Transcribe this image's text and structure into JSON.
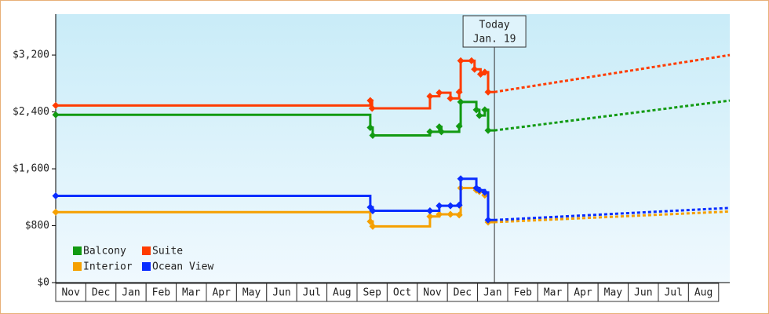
{
  "chart_data": {
    "type": "step-line",
    "xlim": [
      0,
      22.37
    ],
    "ylim": [
      0,
      3775
    ],
    "yticks": [
      {
        "value": 0,
        "label": "$0"
      },
      {
        "value": 800,
        "label": "$800"
      },
      {
        "value": 1600,
        "label": "$1,600"
      },
      {
        "value": 2400,
        "label": "$2,400"
      },
      {
        "value": 3200,
        "label": "$3,200"
      }
    ],
    "xticks": [
      {
        "value": 0.5,
        "label": "Nov"
      },
      {
        "value": 1.5,
        "label": "Dec"
      },
      {
        "value": 2.5,
        "label": "Jan"
      },
      {
        "value": 3.5,
        "label": "Feb"
      },
      {
        "value": 4.5,
        "label": "Mar"
      },
      {
        "value": 5.5,
        "label": "Apr"
      },
      {
        "value": 6.5,
        "label": "May"
      },
      {
        "value": 7.5,
        "label": "Jun"
      },
      {
        "value": 8.5,
        "label": "Jul"
      },
      {
        "value": 9.5,
        "label": "Aug"
      },
      {
        "value": 10.5,
        "label": "Sep"
      },
      {
        "value": 11.5,
        "label": "Oct"
      },
      {
        "value": 12.5,
        "label": "Nov"
      },
      {
        "value": 13.5,
        "label": "Dec"
      },
      {
        "value": 14.5,
        "label": "Jan"
      },
      {
        "value": 15.5,
        "label": "Feb"
      },
      {
        "value": 16.5,
        "label": "Mar"
      },
      {
        "value": 17.5,
        "label": "Apr"
      },
      {
        "value": 18.5,
        "label": "May"
      },
      {
        "value": 19.5,
        "label": "Jun"
      },
      {
        "value": 20.5,
        "label": "Jul"
      },
      {
        "value": 21.5,
        "label": "Aug"
      }
    ],
    "annotation": {
      "x": 14.56,
      "lines": [
        "Today",
        "Jan. 19"
      ]
    },
    "series": [
      {
        "name": "Balcony",
        "color": "#129a12",
        "x": [
          0,
          10.44,
          10.52,
          12.42,
          12.73,
          12.8,
          13.39,
          13.44,
          13.96,
          14.06,
          14.24,
          14.35
        ],
        "values": [
          2360,
          2180,
          2070,
          2120,
          2190,
          2120,
          2200,
          2540,
          2430,
          2350,
          2430,
          2140
        ],
        "projection": {
          "x": [
            14.56,
            22.37
          ],
          "values": [
            2140,
            2560
          ]
        }
      },
      {
        "name": "Suite",
        "color": "#ff3c00",
        "x": [
          0,
          10.44,
          10.5,
          12.42,
          12.73,
          13.1,
          13.39,
          13.44,
          13.8,
          13.9,
          14.1,
          14.24,
          14.35
        ],
        "values": [
          2490,
          2560,
          2450,
          2620,
          2670,
          2590,
          2680,
          3120,
          3120,
          3000,
          2930,
          2960,
          2680
        ],
        "projection": {
          "x": [
            14.56,
            22.37
          ],
          "values": [
            2680,
            3200
          ]
        }
      },
      {
        "name": "Interior",
        "color": "#f5a000",
        "x": [
          0,
          10.44,
          10.52,
          12.42,
          12.73,
          13.1,
          13.39,
          13.44,
          13.96,
          14.06,
          14.24,
          14.35
        ],
        "values": [
          990,
          860,
          790,
          930,
          960,
          960,
          950,
          1330,
          1300,
          1280,
          1230,
          850
        ],
        "projection": {
          "x": [
            14.56,
            22.37
          ],
          "values": [
            850,
            1000
          ]
        }
      },
      {
        "name": "Ocean View",
        "color": "#0a2dff",
        "x": [
          0,
          10.44,
          10.52,
          12.42,
          12.73,
          13.1,
          13.39,
          13.44,
          13.96,
          14.06,
          14.24,
          14.35
        ],
        "values": [
          1220,
          1060,
          1010,
          1010,
          1080,
          1080,
          1090,
          1460,
          1330,
          1300,
          1270,
          880
        ],
        "projection": {
          "x": [
            14.56,
            22.37
          ],
          "values": [
            880,
            1050
          ]
        }
      }
    ]
  }
}
